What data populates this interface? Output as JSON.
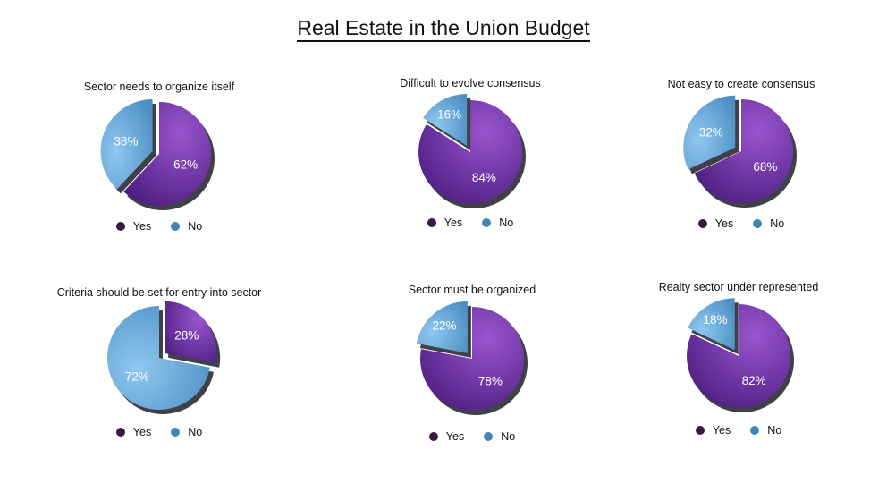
{
  "title": "Real Estate in the Union Budget",
  "colors": {
    "yes": "#6a2fa0",
    "yes_dot": "#3b1744",
    "no": "#5fa6d8",
    "no_dot": "#3f86b2"
  },
  "chart_data": [
    {
      "type": "pie",
      "title": "Sector needs to organize itself",
      "labels": [
        "Yes",
        "No"
      ],
      "values": [
        62,
        38
      ],
      "value_labels": [
        "62%",
        "38%"
      ],
      "exploded": "No"
    },
    {
      "type": "pie",
      "title": "Difficult to evolve consensus",
      "labels": [
        "Yes",
        "No"
      ],
      "values": [
        84,
        16
      ],
      "value_labels": [
        "84%",
        "16%"
      ],
      "exploded": "No"
    },
    {
      "type": "pie",
      "title": "Not easy to create consensus",
      "labels": [
        "Yes",
        "No"
      ],
      "values": [
        68,
        32
      ],
      "value_labels": [
        "68%",
        "32%"
      ],
      "exploded": "No"
    },
    {
      "type": "pie",
      "title": "Criteria should be set for entry into sector",
      "labels": [
        "Yes",
        "No"
      ],
      "values": [
        28,
        72
      ],
      "value_labels": [
        "28%",
        "72%"
      ],
      "exploded": "Yes"
    },
    {
      "type": "pie",
      "title": "Sector must be organized",
      "labels": [
        "Yes",
        "No"
      ],
      "values": [
        78,
        22
      ],
      "value_labels": [
        "78%",
        "22%"
      ],
      "exploded": "No"
    },
    {
      "type": "pie",
      "title": "Realty sector under represented",
      "labels": [
        "Yes",
        "No"
      ],
      "values": [
        82,
        18
      ],
      "value_labels": [
        "82%",
        "18%"
      ],
      "exploded": "No"
    }
  ]
}
